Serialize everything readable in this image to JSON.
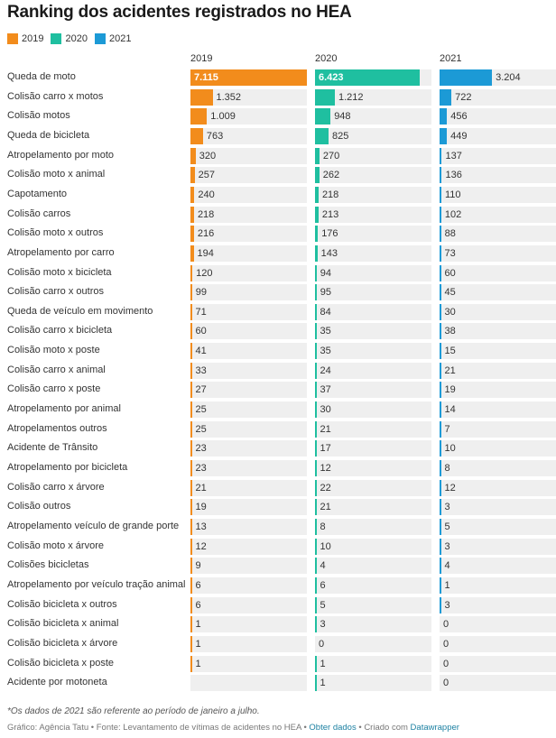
{
  "title": "Ranking dos acidentes registrados no HEA",
  "colors": {
    "2019": "#f28c1c",
    "2020": "#1fbfa0",
    "2021": "#1c9ad6",
    "track": "#efefef"
  },
  "legend": [
    {
      "label": "2019",
      "color": "#f28c1c"
    },
    {
      "label": "2020",
      "color": "#1fbfa0"
    },
    {
      "label": "2021",
      "color": "#1c9ad6"
    }
  ],
  "chart_data": {
    "type": "bar",
    "title": "Ranking dos acidentes registrados no HEA",
    "xlabel": "",
    "ylabel": "",
    "xlim": [
      0,
      7115
    ],
    "categories": [
      "Queda de moto",
      "Colisão carro x motos",
      "Colisão motos",
      "Queda de bicicleta",
      "Atropelamento por moto",
      "Colisão moto x animal",
      "Capotamento",
      "Colisão carros",
      "Colisão moto x outros",
      "Atropelamento por carro",
      "Colisão moto x bicicleta",
      "Colisão carro x outros",
      "Queda de veículo em movimento",
      "Colisão carro x bicicleta",
      "Colisão moto x poste",
      "Colisão carro x animal",
      "Colisão carro x poste",
      "Atropelamento por animal",
      "Atropelamentos outros",
      "Acidente de Trânsito",
      "Atropelamento por bicicleta",
      "Colisão carro x árvore",
      "Colisão outros",
      "Atropelamento veículo de grande porte",
      "Colisão moto x árvore",
      "Colisões bicicletas",
      "Atropelamento por veículo tração animal",
      "Colisão bicicleta x outros",
      "Colisão bicicleta x animal",
      "Colisão bicicleta x árvore",
      "Colisão bicicleta x poste",
      "Acidente por motoneta"
    ],
    "series": [
      {
        "name": "2019",
        "color": "#f28c1c",
        "values": [
          7115,
          1352,
          1009,
          763,
          320,
          257,
          240,
          218,
          216,
          194,
          120,
          99,
          71,
          60,
          41,
          33,
          27,
          25,
          25,
          23,
          23,
          21,
          19,
          13,
          12,
          9,
          6,
          6,
          1,
          1,
          1,
          null
        ],
        "labels": [
          "7.115",
          "1.352",
          "1.009",
          "763",
          "320",
          "257",
          "240",
          "218",
          "216",
          "194",
          "120",
          "99",
          "71",
          "60",
          "41",
          "33",
          "27",
          "25",
          "25",
          "23",
          "23",
          "21",
          "19",
          "13",
          "12",
          "9",
          "6",
          "6",
          "1",
          "1",
          "1",
          ""
        ]
      },
      {
        "name": "2020",
        "color": "#1fbfa0",
        "values": [
          6423,
          1212,
          948,
          825,
          270,
          262,
          218,
          213,
          176,
          143,
          94,
          95,
          84,
          35,
          35,
          24,
          37,
          30,
          21,
          17,
          12,
          22,
          21,
          8,
          10,
          4,
          6,
          5,
          3,
          0,
          1,
          1
        ],
        "labels": [
          "6.423",
          "1.212",
          "948",
          "825",
          "270",
          "262",
          "218",
          "213",
          "176",
          "143",
          "94",
          "95",
          "84",
          "35",
          "35",
          "24",
          "37",
          "30",
          "21",
          "17",
          "12",
          "22",
          "21",
          "8",
          "10",
          "4",
          "6",
          "5",
          "3",
          "0",
          "1",
          "1"
        ]
      },
      {
        "name": "2021",
        "color": "#1c9ad6",
        "values": [
          3204,
          722,
          456,
          449,
          137,
          136,
          110,
          102,
          88,
          73,
          60,
          45,
          30,
          38,
          15,
          21,
          19,
          14,
          7,
          10,
          8,
          12,
          3,
          5,
          3,
          4,
          1,
          3,
          0,
          0,
          0,
          0
        ],
        "labels": [
          "3.204",
          "722",
          "456",
          "449",
          "137",
          "136",
          "110",
          "102",
          "88",
          "73",
          "60",
          "45",
          "30",
          "38",
          "15",
          "21",
          "19",
          "14",
          "7",
          "10",
          "8",
          "12",
          "3",
          "5",
          "3",
          "4",
          "1",
          "3",
          "0",
          "0",
          "0",
          "0"
        ]
      }
    ]
  },
  "footnote": "*Os dados de 2021 são referente ao período de janeiro a julho.",
  "source": {
    "prefix": "Gráfico: Agência Tatu • Fonte: Levantamento de vítimas de acidentes no HEA • ",
    "get_data": "Obter dados",
    "middle": " • Criado com ",
    "tool": "Datawrapper"
  }
}
